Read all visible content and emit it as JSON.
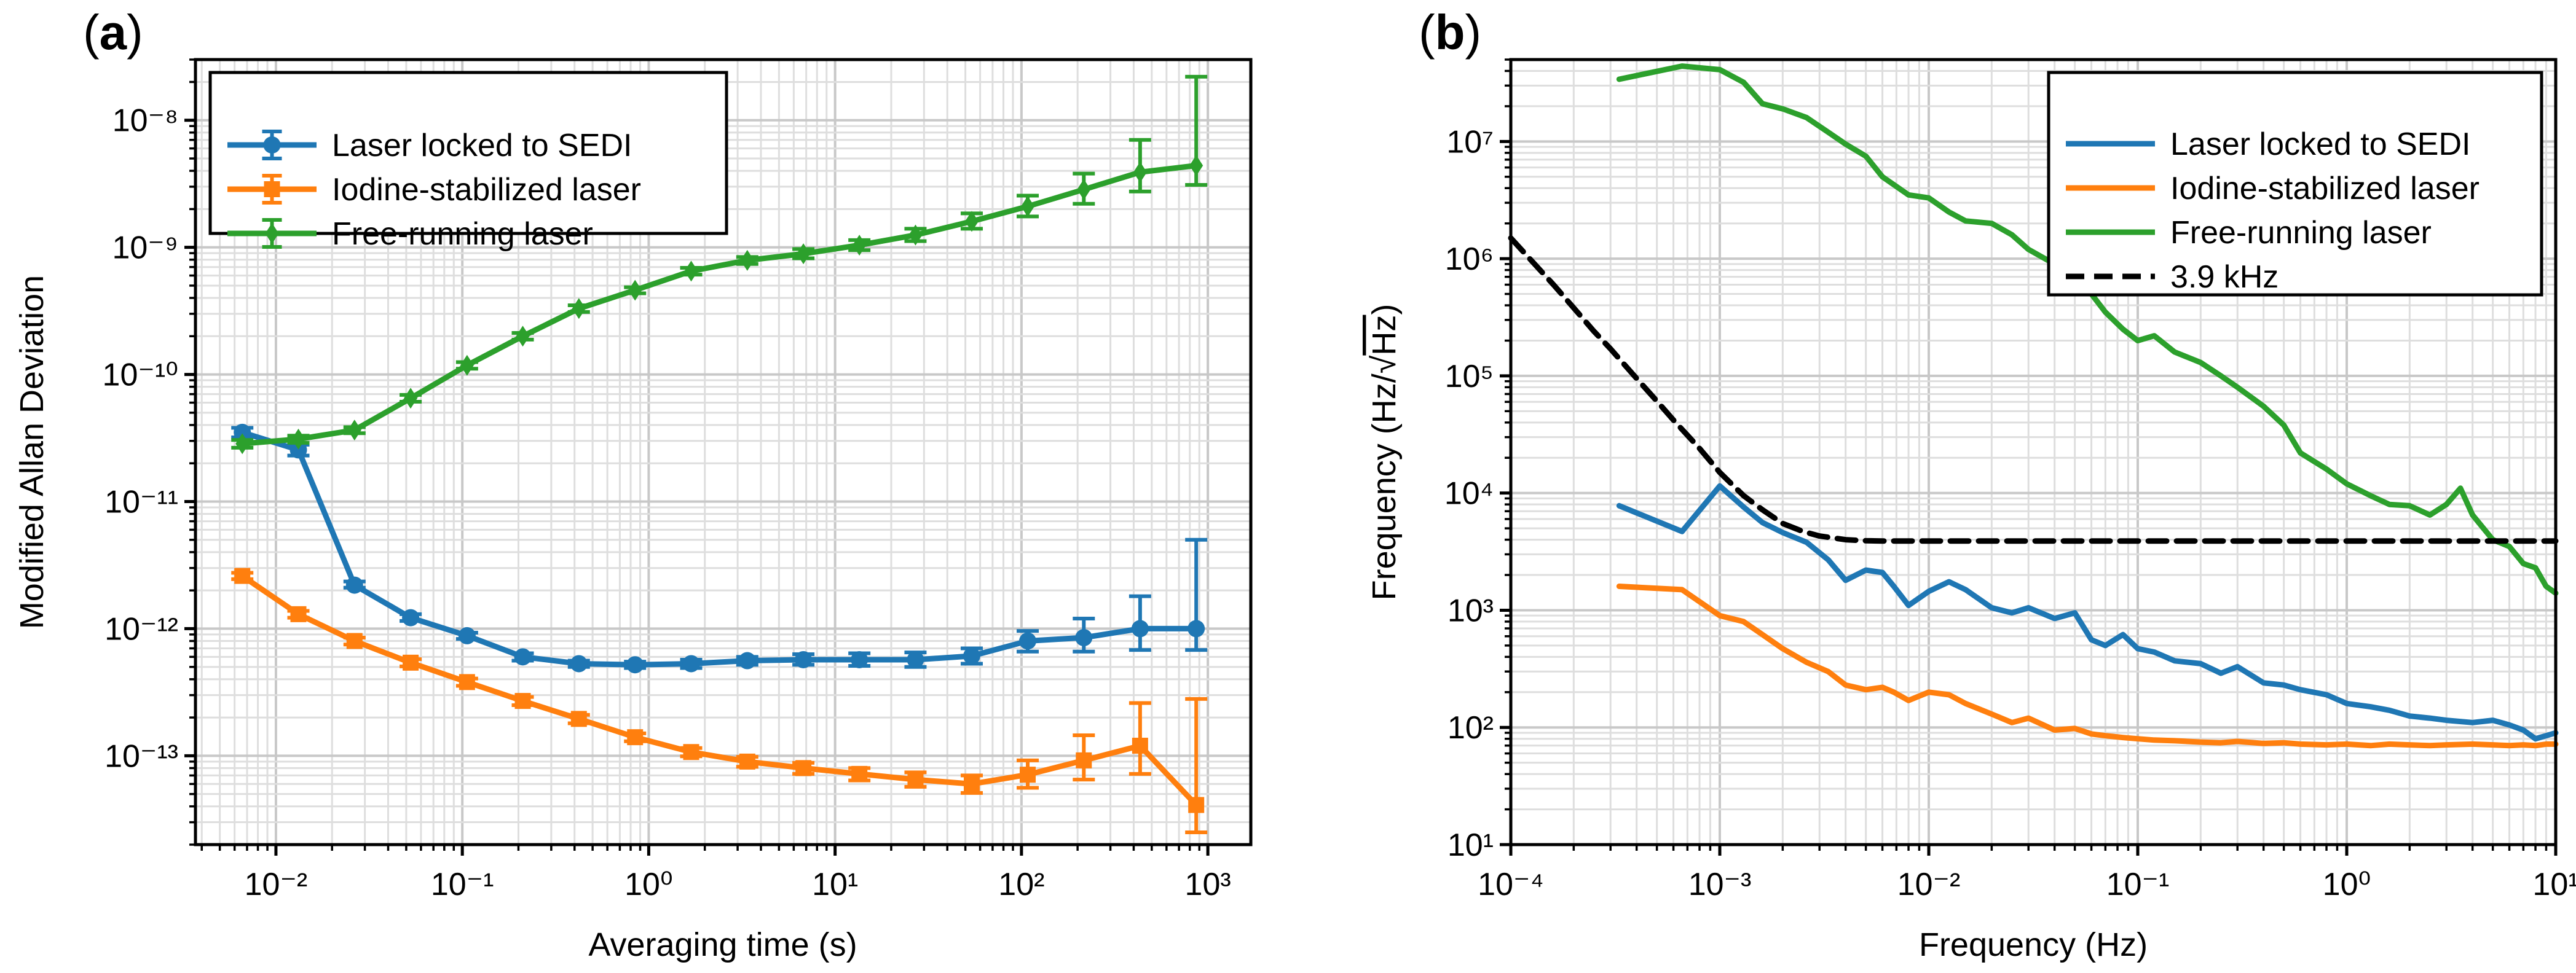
{
  "chart_data": [
    {
      "panel_label": "a",
      "type": "line",
      "xscale": "log",
      "yscale": "log",
      "xlabel": "Averaging time (s)",
      "ylabel": "Modified Allan Deviation",
      "xlim": [
        0.0037,
        1700
      ],
      "ylim": [
        2e-14,
        3e-08
      ],
      "xtick_exponents": [
        -2,
        -1,
        0,
        1,
        2,
        3
      ],
      "ytick_exponents": [
        -13,
        -12,
        -11,
        -10,
        -9,
        -8
      ],
      "grid": true,
      "legend_position": "top-left",
      "series": [
        {
          "name": "Laser locked to SEDI",
          "color": "#1f77b4",
          "marker": "circle",
          "x": [
            0.0066,
            0.0132,
            0.0264,
            0.0528,
            0.106,
            0.211,
            0.422,
            0.845,
            1.69,
            3.38,
            6.76,
            13.5,
            27.0,
            54.1,
            108,
            216,
            433,
            866
          ],
          "y": [
            3.5e-11,
            2.55e-11,
            2.2e-12,
            1.22e-12,
            8.8e-13,
            6e-13,
            5.3e-13,
            5.2e-13,
            5.3e-13,
            5.6e-13,
            5.7e-13,
            5.7e-13,
            5.7e-13,
            6.1e-13,
            8e-13,
            8.5e-13,
            1e-12,
            1e-12
          ],
          "err_low": [
            3.2e-11,
            2.3e-11,
            2.1e-12,
            1.15e-12,
            8.3e-13,
            5.6e-13,
            5e-13,
            4.9e-13,
            4.9e-13,
            5.2e-13,
            5.2e-13,
            5.1e-13,
            5e-13,
            5.3e-13,
            6.6e-13,
            6.6e-13,
            6.8e-13,
            6.8e-13
          ],
          "err_high": [
            3.8e-11,
            2.8e-11,
            2.35e-12,
            1.3e-12,
            9.3e-13,
            6.4e-13,
            5.6e-13,
            5.5e-13,
            5.7e-13,
            6e-13,
            6.3e-13,
            6.4e-13,
            6.5e-13,
            7e-13,
            9.6e-13,
            1.2e-12,
            1.8e-12,
            5e-12
          ]
        },
        {
          "name": "Iodine-stabilized laser",
          "color": "#ff7f0e",
          "marker": "square",
          "x": [
            0.0066,
            0.0132,
            0.0264,
            0.0528,
            0.106,
            0.211,
            0.422,
            0.845,
            1.69,
            3.38,
            6.76,
            13.5,
            27.0,
            54.1,
            108,
            216,
            433,
            866
          ],
          "y": [
            2.6e-12,
            1.3e-12,
            8e-13,
            5.4e-13,
            3.8e-13,
            2.7e-13,
            1.95e-13,
            1.4e-13,
            1.07e-13,
            9e-14,
            8e-14,
            7.2e-14,
            6.5e-14,
            6e-14,
            7.1e-14,
            9.2e-14,
            1.2e-13,
            4.1e-14
          ],
          "err_low": [
            2.45e-12,
            1.22e-12,
            7.5e-13,
            5.05e-13,
            3.55e-13,
            2.5e-13,
            1.8e-13,
            1.3e-13,
            9.9e-14,
            8.2e-14,
            7.2e-14,
            6.4e-14,
            5.7e-14,
            5.1e-14,
            5.6e-14,
            6.5e-14,
            7.2e-14,
            2.5e-14
          ],
          "err_high": [
            2.75e-12,
            1.38e-12,
            8.5e-13,
            5.75e-13,
            4.05e-13,
            2.9e-13,
            2.1e-13,
            1.5e-13,
            1.15e-13,
            9.8e-14,
            8.8e-14,
            8e-14,
            7.4e-14,
            7e-14,
            9.2e-14,
            1.45e-13,
            2.6e-13,
            2.8e-13
          ]
        },
        {
          "name": "Free-running laser",
          "color": "#2ca02c",
          "marker": "diamond",
          "x": [
            0.0066,
            0.0132,
            0.0264,
            0.0528,
            0.106,
            0.211,
            0.422,
            0.845,
            1.69,
            3.38,
            6.76,
            13.5,
            27.0,
            54.1,
            108,
            216,
            433,
            866
          ],
          "y": [
            2.85e-11,
            3.1e-11,
            3.65e-11,
            6.5e-11,
            1.18e-10,
            2e-10,
            3.3e-10,
            4.6e-10,
            6.5e-10,
            7.9e-10,
            8.9e-10,
            1.04e-09,
            1.25e-09,
            1.6e-09,
            2.1e-09,
            2.85e-09,
            3.9e-09,
            4.4e-09
          ],
          "err_low": [
            2.65e-11,
            2.9e-11,
            3.45e-11,
            6.1e-11,
            1.11e-10,
            1.88e-10,
            3.1e-10,
            4.35e-10,
            6.1e-10,
            7.4e-10,
            8.2e-10,
            9.5e-10,
            1.12e-09,
            1.4e-09,
            1.75e-09,
            2.2e-09,
            2.75e-09,
            3.1e-09
          ],
          "err_high": [
            3.05e-11,
            3.3e-11,
            3.85e-11,
            6.9e-11,
            1.25e-10,
            2.12e-10,
            3.5e-10,
            4.85e-10,
            6.9e-10,
            8.4e-10,
            9.7e-10,
            1.14e-09,
            1.4e-09,
            1.85e-09,
            2.55e-09,
            3.8e-09,
            7e-09,
            2.2e-08
          ]
        }
      ]
    },
    {
      "panel_label": "b",
      "type": "line",
      "xscale": "log",
      "yscale": "log",
      "xlabel": "Frequency (Hz)",
      "ylabel_prefix": "Frequency (Hz/",
      "ylabel_root": "Hz",
      "ylabel_suffix": ")",
      "xlim": [
        0.0001,
        10
      ],
      "ylim": [
        10,
        50000000
      ],
      "xtick_exponents": [
        -4,
        -3,
        -2,
        -1,
        0,
        1
      ],
      "ytick_exponents": [
        1,
        2,
        3,
        4,
        5,
        6,
        7
      ],
      "grid": true,
      "legend_position": "top-right",
      "series": [
        {
          "name": "Laser locked to SEDI",
          "color": "#1f77b4",
          "x": [
            0.00033,
            0.00066,
            0.001,
            0.0013,
            0.0016,
            0.002,
            0.0026,
            0.0033,
            0.004,
            0.005,
            0.006,
            0.0068,
            0.008,
            0.01,
            0.0125,
            0.015,
            0.02,
            0.025,
            0.03,
            0.04,
            0.05,
            0.06,
            0.07,
            0.085,
            0.1,
            0.12,
            0.15,
            0.2,
            0.25,
            0.3,
            0.4,
            0.5,
            0.6,
            0.8,
            1.0,
            1.3,
            1.6,
            2.0,
            2.5,
            3.0,
            4.0,
            5.0,
            6.0,
            7.0,
            8.0,
            9.0,
            10.0
          ],
          "y": [
            7800,
            4700,
            11500,
            7600,
            5600,
            4600,
            3800,
            2700,
            1800,
            2200,
            2100,
            1600,
            1100,
            1450,
            1750,
            1500,
            1050,
            950,
            1050,
            850,
            950,
            560,
            500,
            620,
            470,
            440,
            370,
            350,
            290,
            330,
            240,
            230,
            210,
            190,
            160,
            150,
            140,
            125,
            120,
            115,
            110,
            115,
            105,
            95,
            80,
            85,
            90
          ]
        },
        {
          "name": "Iodine-stabilized laser",
          "color": "#ff7f0e",
          "x": [
            0.00033,
            0.00066,
            0.001,
            0.0013,
            0.0016,
            0.002,
            0.0026,
            0.0033,
            0.004,
            0.005,
            0.006,
            0.0068,
            0.008,
            0.01,
            0.0125,
            0.015,
            0.02,
            0.025,
            0.03,
            0.04,
            0.05,
            0.06,
            0.07,
            0.085,
            0.1,
            0.12,
            0.15,
            0.2,
            0.25,
            0.3,
            0.4,
            0.5,
            0.6,
            0.8,
            1.0,
            1.3,
            1.6,
            2.0,
            2.5,
            3.0,
            4.0,
            5.0,
            6.0,
            7.0,
            8.0,
            9.0,
            10.0
          ],
          "y": [
            1600,
            1500,
            900,
            800,
            620,
            470,
            360,
            300,
            230,
            210,
            220,
            200,
            170,
            200,
            190,
            160,
            130,
            110,
            120,
            95,
            98,
            88,
            85,
            82,
            80,
            78,
            77,
            75,
            74,
            76,
            73,
            74,
            72,
            71,
            72,
            70,
            72,
            71,
            70,
            71,
            72,
            71,
            70,
            71,
            70,
            72,
            72
          ]
        },
        {
          "name": "Free-running laser",
          "color": "#2ca02c",
          "x": [
            0.00033,
            0.00066,
            0.001,
            0.0013,
            0.0016,
            0.002,
            0.0026,
            0.0033,
            0.004,
            0.005,
            0.006,
            0.008,
            0.01,
            0.0125,
            0.015,
            0.02,
            0.025,
            0.03,
            0.04,
            0.05,
            0.06,
            0.07,
            0.085,
            0.1,
            0.12,
            0.15,
            0.2,
            0.25,
            0.3,
            0.4,
            0.5,
            0.6,
            0.8,
            1.0,
            1.3,
            1.6,
            2.0,
            2.5,
            3.0,
            3.5,
            4.0,
            5.0,
            6.0,
            7.0,
            8.0,
            9.0,
            10.0
          ],
          "y": [
            34000000,
            44000000,
            41000000,
            32000000,
            21000000,
            19000000,
            16000000,
            12000000,
            9500000,
            7500000,
            5000000,
            3500000,
            3300000,
            2500000,
            2100000,
            2000000,
            1600000,
            1200000,
            900000,
            700000,
            500000,
            350000,
            250000,
            200000,
            220000,
            160000,
            130000,
            100000,
            80000,
            55000,
            38000,
            22000,
            16000,
            12000,
            9500,
            8000,
            7800,
            6500,
            8000,
            11000,
            6500,
            4000,
            3500,
            2500,
            2300,
            1600,
            1400
          ]
        },
        {
          "name": "3.9 kHz",
          "color": "#000000",
          "style": "dashed",
          "x": [
            0.0001,
            0.00013,
            0.00016,
            0.0002,
            0.00025,
            0.0003,
            0.0004,
            0.0005,
            0.0006,
            0.0008,
            0.001,
            0.0013,
            0.0016,
            0.002,
            0.0025,
            0.003,
            0.004,
            0.005,
            0.006,
            0.008,
            0.01,
            0.1,
            1.0,
            10.0
          ],
          "y": [
            1500000,
            900000,
            600000,
            380000,
            240000,
            170000,
            95000,
            61000,
            42000,
            24000,
            15000,
            9500,
            7200,
            5500,
            4700,
            4300,
            4000,
            3920,
            3900,
            3900,
            3900,
            3900,
            3900,
            3900
          ]
        }
      ]
    }
  ]
}
